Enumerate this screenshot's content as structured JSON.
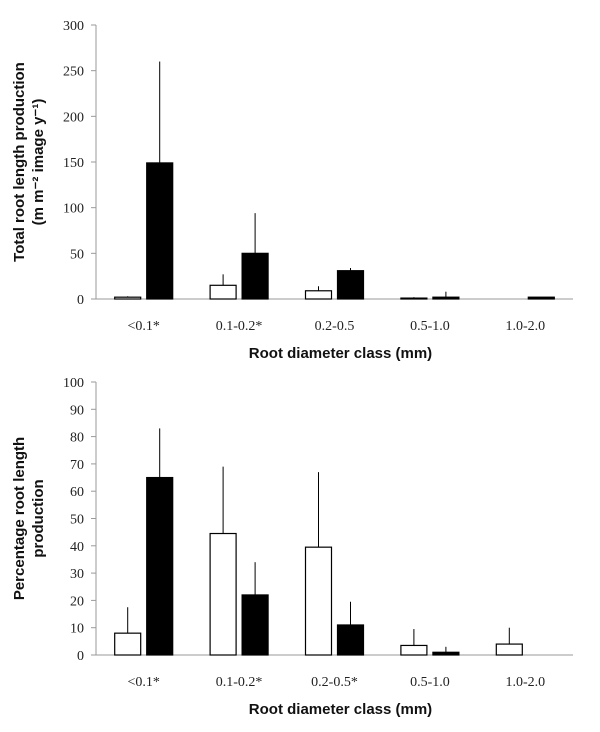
{
  "chart_data": [
    {
      "type": "bar",
      "xlabel": "Root diameter class (mm)",
      "ylabel_lines": [
        "Total root length production",
        "(m m⁻² image y⁻¹)"
      ],
      "ylim": [
        0,
        300
      ],
      "yticks": [
        0,
        50,
        100,
        150,
        200,
        250,
        300
      ],
      "categories": [
        "<0.1*",
        "0.1-0.2*",
        "0.2-0.5",
        "0.5-1.0",
        "1.0-2.0"
      ],
      "series": [
        {
          "style": "open",
          "values": [
            2,
            15,
            9,
            1,
            0
          ],
          "error": [
            1,
            12,
            5,
            1,
            0
          ]
        },
        {
          "style": "filled",
          "values": [
            149,
            50,
            31,
            2,
            2
          ],
          "error": [
            111,
            44,
            3,
            6,
            0
          ]
        }
      ]
    },
    {
      "type": "bar",
      "xlabel": "Root diameter class (mm)",
      "ylabel_lines": [
        "Percentage root length",
        "production"
      ],
      "ylim": [
        0,
        100
      ],
      "yticks": [
        0,
        10,
        20,
        30,
        40,
        50,
        60,
        70,
        80,
        90,
        100
      ],
      "categories": [
        "<0.1*",
        "0.1-0.2*",
        "0.2-0.5*",
        "0.5-1.0",
        "1.0-2.0"
      ],
      "series": [
        {
          "style": "open",
          "values": [
            8,
            44.5,
            39.5,
            3.5,
            4
          ],
          "error": [
            9.5,
            24.5,
            27.5,
            6,
            6
          ]
        },
        {
          "style": "filled",
          "values": [
            65,
            22,
            11,
            1,
            0
          ],
          "error": [
            18,
            12,
            8.5,
            2,
            0
          ]
        }
      ]
    }
  ]
}
